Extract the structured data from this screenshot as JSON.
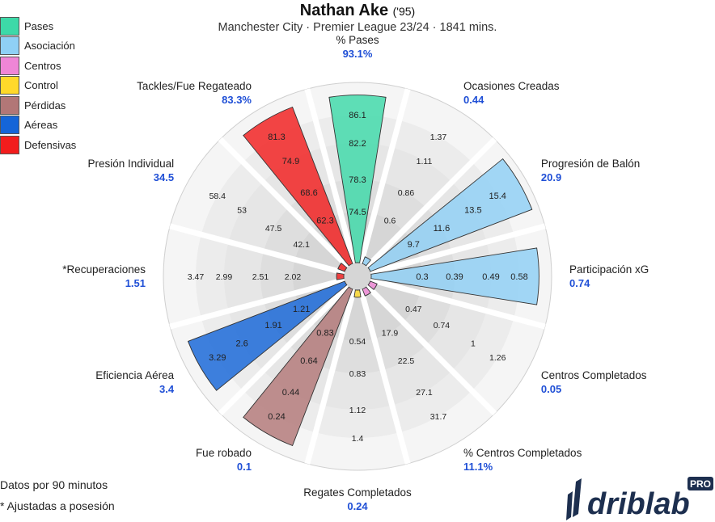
{
  "header": {
    "player": "Nathan Ake",
    "year": "('95)",
    "subtitle": "Manchester City · Premier League 23/24 · 1841 mins."
  },
  "legend": [
    {
      "label": "Pases",
      "color": "#3dd9a8"
    },
    {
      "label": "Asociación",
      "color": "#8fd0f5"
    },
    {
      "label": "Centros",
      "color": "#ef86d6"
    },
    {
      "label": "Control",
      "color": "#ffd92a"
    },
    {
      "label": "Pérdidas",
      "color": "#b27777"
    },
    {
      "label": "Aéreas",
      "color": "#1565d8"
    },
    {
      "label": "Defensivas",
      "color": "#f21d1d"
    }
  ],
  "footnotes": {
    "per90": "Datos por 90 minutos",
    "possession": "* Ajustadas a posesión"
  },
  "logo": {
    "text": "driblab",
    "badge": "PRO"
  },
  "chart_data": {
    "type": "radial-bar",
    "categories": [
      {
        "name": "% Pases",
        "value_label": "93.1%",
        "group": "Pases",
        "fill": 0.93,
        "ticks": [
          "74.5",
          "78.3",
          "82.2",
          "86.1"
        ]
      },
      {
        "name": "Ocasiones Creadas",
        "value_label": "0.44",
        "group": "Asociación",
        "fill": 0.04,
        "ticks": [
          "0.6",
          "0.86",
          "1.11",
          "1.37"
        ]
      },
      {
        "name": "Progresión de Balón",
        "value_label": "20.9",
        "group": "Asociación",
        "fill": 0.96,
        "ticks": [
          "9.7",
          "11.6",
          "13.5",
          "15.4"
        ]
      },
      {
        "name": "Participación xG",
        "value_label": "0.74",
        "group": "Asociación",
        "fill": 0.93,
        "ticks": [
          "0.3",
          "0.39",
          "0.49",
          "0.58"
        ]
      },
      {
        "name": "Centros Completados",
        "value_label": "0.05",
        "group": "Centros",
        "fill": 0.04,
        "ticks": [
          "0.47",
          "0.74",
          "1",
          "1.26"
        ]
      },
      {
        "name": "% Centros Completados",
        "value_label": "11.1%",
        "group": "Centros",
        "fill": 0.04,
        "ticks": [
          "17.9",
          "22.5",
          "27.1",
          "31.7"
        ]
      },
      {
        "name": "Regates Completados",
        "value_label": "0.24",
        "group": "Control",
        "fill": 0.04,
        "ticks": [
          "0.54",
          "0.83",
          "1.12",
          "1.4"
        ]
      },
      {
        "name": "Fue robado",
        "value_label": "0.1",
        "group": "Pérdidas",
        "fill": 0.93,
        "ticks": [
          "0.83",
          "0.64",
          "0.44",
          "0.24"
        ]
      },
      {
        "name": "Eficiencia Aérea",
        "value_label": "3.4",
        "group": "Aéreas",
        "fill": 0.93,
        "ticks": [
          "1.21",
          "1.91",
          "2.6",
          "3.29"
        ]
      },
      {
        "name": "*Recuperaciones",
        "value_label": "1.51",
        "group": "Defensivas",
        "fill": 0.04,
        "ticks": [
          "2.02",
          "2.51",
          "2.99",
          "3.47"
        ]
      },
      {
        "name": "Presión Individual",
        "value_label": "34.5",
        "group": "Defensivas",
        "fill": 0.04,
        "ticks": [
          "42.1",
          "47.5",
          "53",
          "58.4"
        ]
      },
      {
        "name": "Tackles/Fue Regateado",
        "value_label": "83.3%",
        "group": "Defensivas",
        "fill": 0.93,
        "ticks": [
          "62.3",
          "68.6",
          "74.9",
          "81.3"
        ]
      }
    ]
  }
}
